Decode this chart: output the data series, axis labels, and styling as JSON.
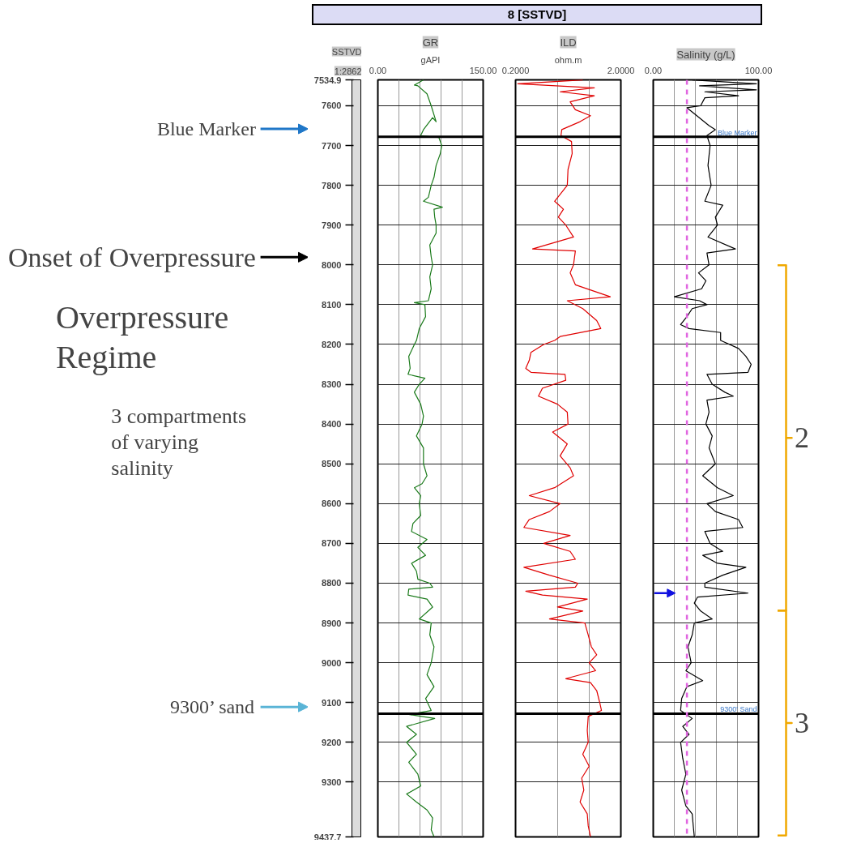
{
  "chart_data": [
    {
      "type": "line",
      "xlabel": "GR",
      "ylabel": "SSTVD",
      "annotations": [
        "gAPI",
        "1:2862",
        "Blue Marker",
        "Onset of Overpressure",
        "9300’ sand",
        "Overpressure Regime",
        "3 compartments of varying salinity"
      ],
      "xlim": [
        0,
        150
      ],
      "xticks": [
        {
          "value": 0,
          "label": "0.00"
        },
        {
          "value": 30,
          "label": null
        },
        {
          "value": 60,
          "label": null
        },
        {
          "value": 90,
          "label": null
        },
        {
          "value": 120,
          "label": null
        },
        {
          "value": 150,
          "label": "150.00"
        }
      ],
      "ylim": [
        9437.7,
        7534.9
      ],
      "yticks": [
        7534.9,
        7600,
        7700,
        7800,
        7900,
        8000,
        8100,
        8200,
        8300,
        8400,
        8500,
        8600,
        8700,
        8800,
        8900,
        9000,
        9100,
        9200,
        9300,
        9437.7
      ],
      "grid": true,
      "ref_lines": [
        {
          "axis": "y",
          "value": 7678,
          "color": "#000000"
        },
        {
          "axis": "y",
          "value": 9128,
          "color": "#000000"
        }
      ],
      "series": [
        {
          "color": "#1a7a1a",
          "x": [
            65,
            52,
            57,
            70,
            76,
            83,
            78,
            65,
            61,
            87,
            91,
            89,
            83,
            80,
            76,
            72,
            65,
            92,
            80,
            81,
            83,
            83,
            74,
            76,
            78,
            74,
            76,
            72,
            52,
            67,
            68,
            59,
            55,
            52,
            44,
            46,
            43,
            67,
            59,
            52,
            61,
            65,
            63,
            55,
            65,
            65,
            70,
            63,
            52,
            61,
            59,
            61,
            50,
            48,
            70,
            57,
            68,
            48,
            55,
            57,
            74,
            78,
            44,
            43,
            70,
            78,
            59,
            76,
            74,
            80,
            76,
            70,
            80,
            68,
            76,
            44,
            81,
            41,
            55,
            41,
            55,
            44,
            57,
            61,
            41,
            55,
            70,
            78,
            76,
            80
          ],
          "values": [
            7535,
            7548,
            7550,
            7570,
            7600,
            7640,
            7630,
            7660,
            7675,
            7680,
            7700,
            7720,
            7750,
            7780,
            7800,
            7830,
            7840,
            7855,
            7860,
            7880,
            7900,
            7920,
            7950,
            7980,
            8000,
            8030,
            8060,
            8090,
            8095,
            8100,
            8130,
            8160,
            8190,
            8200,
            8230,
            8260,
            8275,
            8285,
            8300,
            8320,
            8350,
            8380,
            8400,
            8430,
            8460,
            8500,
            8530,
            8550,
            8560,
            8580,
            8600,
            8630,
            8650,
            8670,
            8690,
            8710,
            8730,
            8750,
            8770,
            8790,
            8800,
            8810,
            8815,
            8830,
            8840,
            8860,
            8890,
            8900,
            8930,
            8960,
            9000,
            9030,
            9060,
            9090,
            9120,
            9130,
            9140,
            9160,
            9180,
            9200,
            9230,
            9250,
            9280,
            9310,
            9330,
            9350,
            9370,
            9390,
            9420,
            9437
          ]
        }
      ]
    },
    {
      "type": "line",
      "title": "8 [SSTVD]",
      "xlabel": "ILD",
      "annotations": [
        "ohm.m"
      ],
      "log": "x",
      "xlim": [
        0.2,
        2
      ],
      "xticks": [
        {
          "value": 0.2,
          "label": "0.2000"
        },
        {
          "value": 0.5,
          "label": null
        },
        {
          "value": 1,
          "label": null
        },
        {
          "value": 2,
          "label": "2.0000"
        }
      ],
      "ylim": [
        9437.7,
        7534.9
      ],
      "yticks": [
        7534.9,
        7600,
        7700,
        7800,
        7900,
        8000,
        8100,
        8200,
        8300,
        8400,
        8500,
        8600,
        8700,
        8800,
        8900,
        9000,
        9100,
        9200,
        9300,
        9437.7
      ],
      "tick_labels": "x",
      "grid": true,
      "ref_lines": [
        {
          "axis": "y",
          "value": 7678,
          "color": "#000000"
        },
        {
          "axis": "y",
          "value": 9128,
          "color": "#000000"
        }
      ],
      "series": [
        {
          "color": "#e00000",
          "x": [
            0.87,
            0.21,
            1.12,
            0.53,
            1.12,
            0.66,
            0.74,
            1.03,
            0.82,
            0.55,
            0.54,
            0.68,
            0.69,
            0.63,
            0.62,
            0.47,
            0.57,
            0.51,
            0.6,
            0.71,
            0.29,
            0.74,
            0.71,
            0.66,
            0.74,
            1.59,
            0.62,
            0.87,
            1.18,
            1.29,
            0.53,
            0.47,
            0.37,
            0.28,
            0.27,
            0.25,
            0.28,
            0.59,
            0.6,
            0.36,
            0.33,
            0.5,
            0.62,
            0.63,
            0.45,
            0.62,
            0.53,
            0.66,
            0.71,
            0.47,
            0.27,
            0.53,
            0.42,
            0.27,
            0.24,
            0.66,
            0.37,
            0.66,
            0.74,
            0.24,
            0.42,
            0.78,
            0.74,
            0.25,
            0.36,
            0.96,
            0.5,
            0.87,
            0.42,
            0.91,
            0.98,
            1.05,
            1.18,
            1.0,
            1.15,
            0.6,
            1.03,
            1.18,
            1.26,
            1.31,
            0.98,
            0.96,
            0.98,
            0.87,
            1.0,
            0.85,
            0.89,
            0.82,
            0.96,
            0.98,
            1.03
          ],
          "values": [
            7535,
            7545,
            7555,
            7565,
            7575,
            7590,
            7610,
            7625,
            7640,
            7660,
            7675,
            7690,
            7720,
            7760,
            7800,
            7840,
            7860,
            7880,
            7900,
            7930,
            7960,
            7965,
            8000,
            8020,
            8050,
            8080,
            8090,
            8110,
            8140,
            8160,
            8180,
            8190,
            8200,
            8220,
            8240,
            8260,
            8270,
            8275,
            8290,
            8310,
            8330,
            8350,
            8370,
            8400,
            8420,
            8450,
            8480,
            8510,
            8530,
            8560,
            8580,
            8600,
            8620,
            8640,
            8660,
            8680,
            8700,
            8720,
            8740,
            8760,
            8780,
            8800,
            8810,
            8820,
            8830,
            8840,
            8860,
            8870,
            8890,
            8900,
            8930,
            8960,
            8980,
            9000,
            9020,
            9040,
            9050,
            9070,
            9100,
            9120,
            9135,
            9170,
            9200,
            9230,
            9260,
            9290,
            9320,
            9350,
            9380,
            9410,
            9437
          ]
        }
      ]
    },
    {
      "type": "line",
      "xlabel": "Salinity (g/L)",
      "annotations": [
        "2",
        "3"
      ],
      "xlim": [
        0,
        100
      ],
      "xticks": [
        {
          "value": 0,
          "label": "0.00"
        },
        {
          "value": 20,
          "label": null
        },
        {
          "value": 40,
          "label": null
        },
        {
          "value": 60,
          "label": null
        },
        {
          "value": 80,
          "label": null
        },
        {
          "value": 100,
          "label": "100.00"
        }
      ],
      "ylim": [
        9437.7,
        7534.9
      ],
      "yticks": [
        7534.9,
        7600,
        7700,
        7800,
        7900,
        8000,
        8100,
        8200,
        8300,
        8400,
        8500,
        8600,
        8700,
        8800,
        8900,
        9000,
        9100,
        9200,
        9300,
        9437.7
      ],
      "tick_labels": "x",
      "grid": true,
      "ref_lines": [
        {
          "axis": "y",
          "value": 7678,
          "label": "Blue Marker",
          "color": "#000000"
        },
        {
          "axis": "y",
          "value": 9128,
          "label": "9300' Sand",
          "color": "#000000"
        },
        {
          "axis": "x",
          "value": 32,
          "color": "#e066e0",
          "line_style": "dashed"
        }
      ],
      "series": [
        {
          "color": "#000000",
          "x": [
            37,
            98,
            44,
            98,
            49,
            81,
            49,
            45,
            32,
            39,
            53,
            59,
            51,
            54,
            52,
            55,
            49,
            66,
            59,
            61,
            52,
            78,
            51,
            53,
            43,
            50,
            46,
            20,
            44,
            51,
            37,
            32,
            26,
            34,
            64,
            64,
            81,
            88,
            93,
            90,
            51,
            56,
            68,
            76,
            51,
            53,
            50,
            56,
            53,
            59,
            47,
            61,
            76,
            51,
            59,
            81,
            85,
            49,
            54,
            66,
            47,
            61,
            88,
            66,
            49,
            49,
            90,
            42,
            39,
            45,
            56,
            39,
            37,
            33,
            36,
            31,
            47,
            32,
            27,
            26,
            37,
            28,
            34,
            26,
            28,
            31,
            27,
            31,
            37,
            38,
            39
          ],
          "values": [
            7535,
            7545,
            7550,
            7560,
            7565,
            7575,
            7580,
            7600,
            7605,
            7620,
            7650,
            7660,
            7675,
            7700,
            7750,
            7800,
            7840,
            7850,
            7880,
            7900,
            7930,
            7960,
            7970,
            8000,
            8020,
            8040,
            8060,
            8080,
            8090,
            8100,
            8110,
            8130,
            8150,
            8160,
            8170,
            8190,
            8210,
            8230,
            8250,
            8270,
            8275,
            8300,
            8320,
            8330,
            8340,
            8370,
            8400,
            8430,
            8460,
            8500,
            8530,
            8560,
            8580,
            8600,
            8620,
            8640,
            8660,
            8670,
            8700,
            8720,
            8730,
            8750,
            8760,
            8780,
            8800,
            8810,
            8825,
            8835,
            8850,
            8870,
            8890,
            8900,
            8930,
            8960,
            9000,
            9020,
            9045,
            9060,
            9090,
            9120,
            9140,
            9160,
            9180,
            9200,
            9240,
            9280,
            9320,
            9360,
            9380,
            9410,
            9437
          ]
        }
      ]
    }
  ]
}
